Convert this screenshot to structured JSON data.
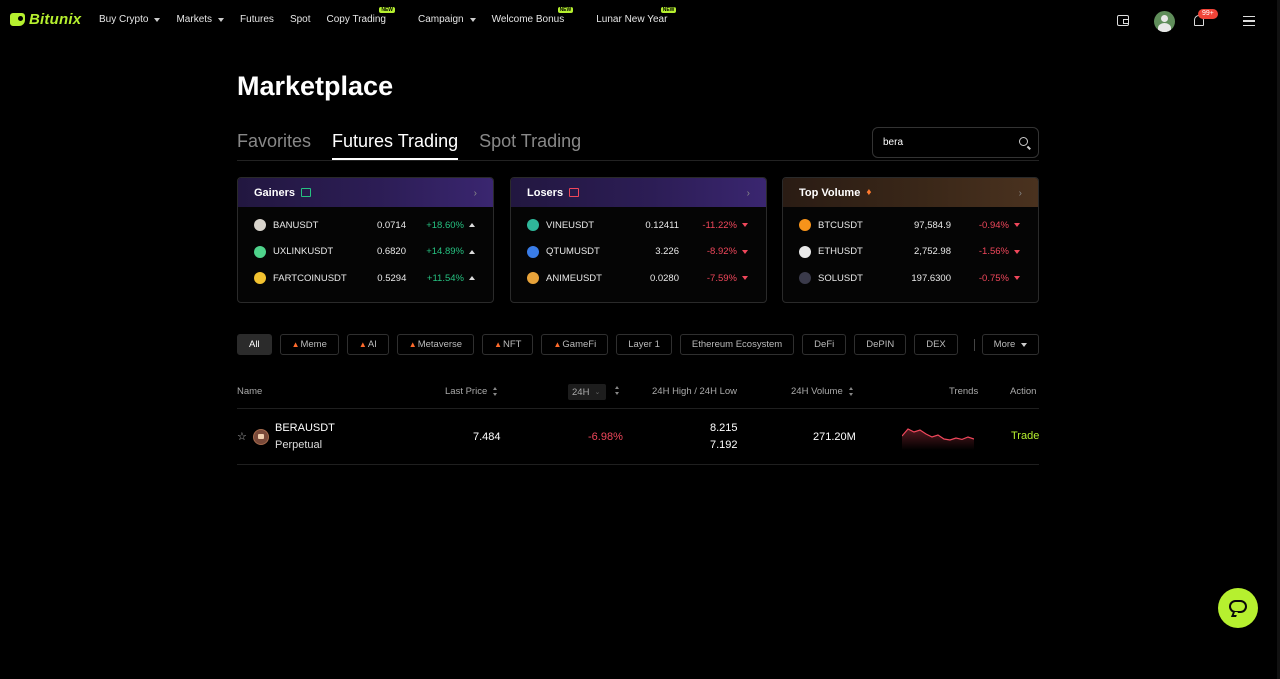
{
  "brand": {
    "name": "Bitunix",
    "color": "#b6f02f"
  },
  "nav": {
    "items": [
      {
        "label": "Buy Crypto",
        "dropdown": true,
        "badge": ""
      },
      {
        "label": "Markets",
        "dropdown": true,
        "badge": ""
      },
      {
        "label": "Futures",
        "dropdown": false,
        "badge": ""
      },
      {
        "label": "Spot",
        "dropdown": false,
        "badge": ""
      },
      {
        "label": "Copy Trading",
        "dropdown": false,
        "badge": "NEW"
      },
      {
        "label": "Campaign",
        "dropdown": true,
        "badge": ""
      },
      {
        "label": "Welcome Bonus",
        "dropdown": false,
        "badge": "NEW"
      },
      {
        "label": "Lunar New Year",
        "dropdown": false,
        "badge": "NEW"
      }
    ],
    "notification_count": "99+",
    "icons": [
      "wallet-icon",
      "avatar",
      "bell-icon",
      "menu-icon"
    ]
  },
  "page": {
    "title": "Marketplace",
    "tabs": [
      {
        "label": "Favorites",
        "active": false
      },
      {
        "label": "Futures Trading",
        "active": true
      },
      {
        "label": "Spot Trading",
        "active": false
      }
    ],
    "search": {
      "value": "bera",
      "placeholder": ""
    }
  },
  "cards": {
    "gainers": {
      "title": "Gainers",
      "rows": [
        {
          "symbol": "BANUSDT",
          "price": "0.0714",
          "change": "+18.60%",
          "icon_color": "#d8d4cc"
        },
        {
          "symbol": "UXLINKUSDT",
          "price": "0.6820",
          "change": "+14.89%",
          "icon_color": "#4fd38b"
        },
        {
          "symbol": "FARTCOINUSDT",
          "price": "0.5294",
          "change": "+11.54%",
          "icon_color": "#f2c230"
        }
      ]
    },
    "losers": {
      "title": "Losers",
      "rows": [
        {
          "symbol": "VINEUSDT",
          "price": "0.12411",
          "change": "-11.22%",
          "icon_color": "#2fb79a"
        },
        {
          "symbol": "QTUMUSDT",
          "price": "3.226",
          "change": "-8.92%",
          "icon_color": "#3a7de8"
        },
        {
          "symbol": "ANIMEUSDT",
          "price": "0.0280",
          "change": "-7.59%",
          "icon_color": "#e8a33a"
        }
      ]
    },
    "top_volume": {
      "title": "Top Volume",
      "rows": [
        {
          "symbol": "BTCUSDT",
          "price": "97,584.9",
          "change": "-0.94%",
          "icon_color": "#f7931a"
        },
        {
          "symbol": "ETHUSDT",
          "price": "2,752.98",
          "change": "-1.56%",
          "icon_color": "#e8e8e8"
        },
        {
          "symbol": "SOLUSDT",
          "price": "197.6300",
          "change": "-0.75%",
          "icon_color": "#3a3a4a"
        }
      ]
    }
  },
  "filters": {
    "chips": [
      {
        "label": "All",
        "hot": false,
        "active": true
      },
      {
        "label": "Meme",
        "hot": true,
        "active": false
      },
      {
        "label": "AI",
        "hot": true,
        "active": false
      },
      {
        "label": "Metaverse",
        "hot": true,
        "active": false
      },
      {
        "label": "NFT",
        "hot": true,
        "active": false
      },
      {
        "label": "GameFi",
        "hot": true,
        "active": false
      },
      {
        "label": "Layer 1",
        "hot": false,
        "active": false
      },
      {
        "label": "Ethereum Ecosystem",
        "hot": false,
        "active": false
      },
      {
        "label": "DeFi",
        "hot": false,
        "active": false
      },
      {
        "label": "DePIN",
        "hot": false,
        "active": false
      },
      {
        "label": "DEX",
        "hot": false,
        "active": false
      }
    ],
    "more_label": "More"
  },
  "table": {
    "headers": {
      "name": "Name",
      "last_price": "Last Price",
      "period": "24H",
      "high_low": "24H High / 24H Low",
      "volume": "24H Volume",
      "trends": "Trends",
      "action": "Action"
    },
    "rows": [
      {
        "symbol": "BERAUSDT",
        "type": "Perpetual",
        "last_price": "7.484",
        "change": "-6.98%",
        "high": "8.215",
        "low": "7.192",
        "volume": "271.20M",
        "action": "Trade",
        "trend": [
          0.55,
          0.2,
          0.35,
          0.25,
          0.45,
          0.6,
          0.5,
          0.7,
          0.75,
          0.65,
          0.72,
          0.6,
          0.7
        ]
      }
    ]
  },
  "colors": {
    "up": "#26c281",
    "down": "#f0475b",
    "accent": "#b6f02f"
  }
}
